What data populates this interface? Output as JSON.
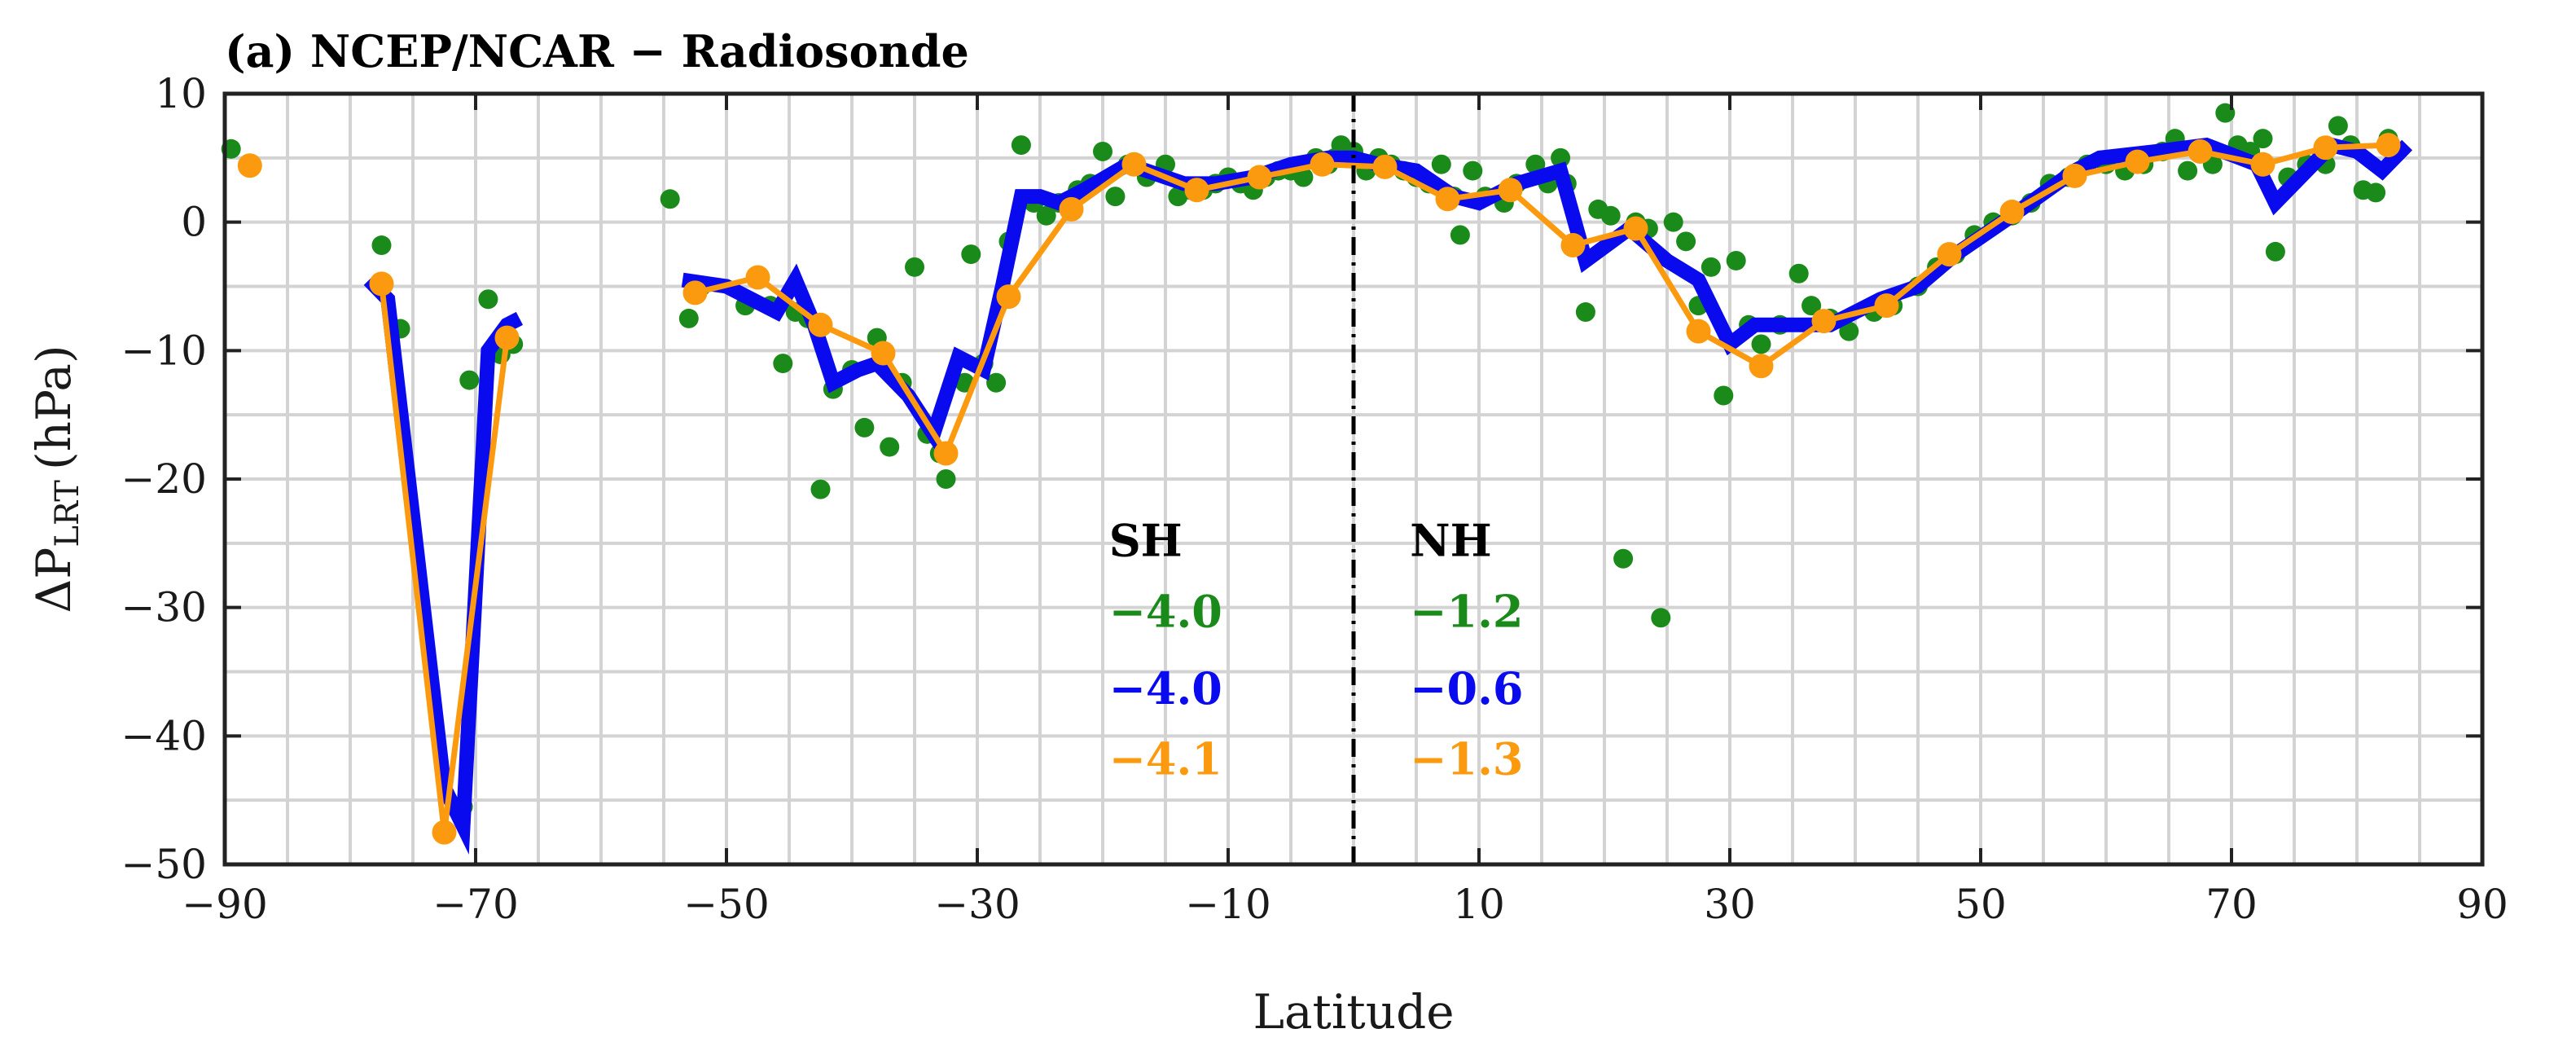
{
  "chart_data": {
    "type": "line",
    "title": "(a) NCEP/NCAR − Radiosonde",
    "xlabel": "Latitude",
    "ylabel_main": "ΔP",
    "ylabel_sub": "LRT",
    "ylabel_unit": "(hPa)",
    "xlim": [
      -90,
      90
    ],
    "ylim": [
      -50,
      10
    ],
    "xticks": [
      -90,
      -70,
      -50,
      -30,
      -10,
      10,
      30,
      50,
      70,
      90
    ],
    "xtick_labels": [
      "−90",
      "−70",
      "−50",
      "−30",
      "−10",
      "10",
      "30",
      "50",
      "70",
      "90"
    ],
    "yticks": [
      10,
      0,
      -10,
      -20,
      -30,
      -40,
      -50
    ],
    "ytick_labels": [
      "10",
      "0",
      "−10",
      "−20",
      "−30",
      "−40",
      "−50"
    ],
    "vgrid": [
      -90,
      -85,
      -80,
      -75,
      -70,
      -65,
      -60,
      -55,
      -50,
      -45,
      -40,
      -35,
      -30,
      -25,
      -20,
      -15,
      -10,
      -5,
      0,
      5,
      10,
      15,
      20,
      25,
      30,
      35,
      40,
      45,
      50,
      55,
      60,
      65,
      70,
      75,
      80,
      85,
      90
    ],
    "hgrid": [
      10,
      5,
      0,
      -5,
      -10,
      -15,
      -20,
      -25,
      -30,
      -35,
      -40,
      -45,
      -50
    ],
    "equator": 0,
    "series": [
      {
        "name": "scatter",
        "style": "scatter",
        "color": "#1a8a1a",
        "points": [
          [
            -89.5,
            5.7
          ],
          [
            -77.5,
            -1.8
          ],
          [
            -76,
            -8.3
          ],
          [
            -71,
            -45.5
          ],
          [
            -70.5,
            -12.3
          ],
          [
            -69,
            -6
          ],
          [
            -68,
            -10.3
          ],
          [
            -67,
            -9.5
          ],
          [
            -54.5,
            1.8
          ],
          [
            -53,
            -7.5
          ],
          [
            -52,
            -5
          ],
          [
            -48.5,
            -6.5
          ],
          [
            -46.5,
            -6.5
          ],
          [
            -45.5,
            -11
          ],
          [
            -44.5,
            -7
          ],
          [
            -43.5,
            -7.5
          ],
          [
            -42.5,
            -20.8
          ],
          [
            -41.5,
            -13
          ],
          [
            -40,
            -11.5
          ],
          [
            -39,
            -16
          ],
          [
            -38,
            -9
          ],
          [
            -37,
            -17.5
          ],
          [
            -36,
            -12.5
          ],
          [
            -35,
            -3.5
          ],
          [
            -34,
            -16.5
          ],
          [
            -33,
            -18
          ],
          [
            -32.5,
            -20
          ],
          [
            -31,
            -12.5
          ],
          [
            -30.5,
            -2.5
          ],
          [
            -29.5,
            -11
          ],
          [
            -28.5,
            -12.5
          ],
          [
            -27.5,
            -1.5
          ],
          [
            -26.5,
            6
          ],
          [
            -25.5,
            1.5
          ],
          [
            -24.5,
            0.5
          ],
          [
            -23.5,
            1.5
          ],
          [
            -22,
            2.5
          ],
          [
            -21,
            3
          ],
          [
            -20,
            5.5
          ],
          [
            -19,
            2
          ],
          [
            -18,
            4.5
          ],
          [
            -16.5,
            3.5
          ],
          [
            -15,
            4.5
          ],
          [
            -14,
            2
          ],
          [
            -13,
            2.5
          ],
          [
            -12,
            2.5
          ],
          [
            -11,
            3
          ],
          [
            -10,
            3.5
          ],
          [
            -9,
            3
          ],
          [
            -8,
            2.5
          ],
          [
            -7,
            3.5
          ],
          [
            -6,
            4
          ],
          [
            -5,
            4
          ],
          [
            -4,
            3.5
          ],
          [
            -3,
            5
          ],
          [
            -2,
            4.5
          ],
          [
            -1.5,
            5
          ],
          [
            -1,
            6
          ],
          [
            0,
            5.5
          ],
          [
            1,
            4
          ],
          [
            2,
            5
          ],
          [
            3,
            4.5
          ],
          [
            4,
            4
          ],
          [
            5,
            3.5
          ],
          [
            6,
            3
          ],
          [
            7,
            4.5
          ],
          [
            8,
            2
          ],
          [
            8.5,
            -1
          ],
          [
            9.5,
            4
          ],
          [
            10.5,
            2
          ],
          [
            12,
            1.5
          ],
          [
            13,
            3
          ],
          [
            14.5,
            4.5
          ],
          [
            15.5,
            3
          ],
          [
            16.5,
            5
          ],
          [
            17,
            3
          ],
          [
            18.5,
            -7
          ],
          [
            19.5,
            1
          ],
          [
            20.5,
            0.5
          ],
          [
            21.5,
            -26.2
          ],
          [
            22.5,
            0
          ],
          [
            23.5,
            -0.5
          ],
          [
            24.5,
            -30.8
          ],
          [
            25.5,
            0
          ],
          [
            26.5,
            -1.5
          ],
          [
            27.5,
            -6.5
          ],
          [
            28.5,
            -3.5
          ],
          [
            29.5,
            -13.5
          ],
          [
            30.5,
            -3
          ],
          [
            31.5,
            -8
          ],
          [
            32.5,
            -9.5
          ],
          [
            34,
            -8
          ],
          [
            35.5,
            -4
          ],
          [
            36.5,
            -6.5
          ],
          [
            38,
            -7.5
          ],
          [
            39.5,
            -8.5
          ],
          [
            41.5,
            -7
          ],
          [
            43,
            -6.5
          ],
          [
            45,
            -5
          ],
          [
            46.5,
            -3.5
          ],
          [
            48,
            -2.5
          ],
          [
            49.5,
            -1
          ],
          [
            51,
            0
          ],
          [
            52.5,
            0.5
          ],
          [
            54,
            1.5
          ],
          [
            55.5,
            3
          ],
          [
            57,
            3.5
          ],
          [
            58.5,
            4.5
          ],
          [
            60,
            4.5
          ],
          [
            61.5,
            4
          ],
          [
            63,
            4.5
          ],
          [
            64.5,
            5.5
          ],
          [
            65.5,
            6.5
          ],
          [
            66.5,
            4
          ],
          [
            67.5,
            5.5
          ],
          [
            68.5,
            4.5
          ],
          [
            69.5,
            8.5
          ],
          [
            70.5,
            6
          ],
          [
            71.5,
            5.5
          ],
          [
            72.5,
            6.5
          ],
          [
            73.5,
            -2.3
          ],
          [
            74.5,
            3.5
          ],
          [
            76,
            4.5
          ],
          [
            77.5,
            4.5
          ],
          [
            78.5,
            7.5
          ],
          [
            79.5,
            6
          ],
          [
            80.5,
            2.5
          ],
          [
            81.5,
            2.3
          ],
          [
            82.5,
            6.5
          ]
        ]
      },
      {
        "name": "blue-line",
        "style": "line",
        "color": "#0a0aee",
        "segments": [
          [
            [
              -78.5,
              -4.5
            ],
            [
              -77,
              -6
            ],
            [
              -72.5,
              -44
            ],
            [
              -71,
              -47
            ],
            [
              -69,
              -10
            ],
            [
              -67.5,
              -8
            ],
            [
              -66.5,
              -7.5
            ]
          ],
          [
            [
              -53.5,
              -4.5
            ],
            [
              -50,
              -5
            ],
            [
              -46,
              -7
            ],
            [
              -44.5,
              -4.5
            ],
            [
              -43,
              -8
            ],
            [
              -41.5,
              -12.5
            ],
            [
              -39.5,
              -11.5
            ],
            [
              -38,
              -11
            ],
            [
              -35.5,
              -13.5
            ],
            [
              -33.5,
              -16.5
            ],
            [
              -31.5,
              -10.5
            ],
            [
              -29.5,
              -11.5
            ],
            [
              -28,
              -5
            ],
            [
              -26.5,
              2
            ],
            [
              -25,
              2
            ],
            [
              -23.5,
              1.5
            ],
            [
              -21.5,
              2.5
            ],
            [
              -18,
              4.5
            ],
            [
              -16.5,
              4
            ],
            [
              -13.5,
              3
            ],
            [
              -11,
              3
            ],
            [
              -8,
              3.5
            ],
            [
              -5,
              4.5
            ],
            [
              -2,
              5
            ],
            [
              0,
              5
            ],
            [
              2,
              4.5
            ],
            [
              5,
              4
            ],
            [
              8,
              2
            ],
            [
              10,
              1.5
            ],
            [
              13,
              3
            ],
            [
              16.5,
              4
            ],
            [
              18.5,
              -3
            ],
            [
              22,
              -0.5
            ],
            [
              25,
              -3
            ],
            [
              27.5,
              -4.5
            ],
            [
              30,
              -9.5
            ],
            [
              32,
              -8
            ],
            [
              35,
              -8
            ],
            [
              38,
              -8
            ],
            [
              42,
              -6
            ],
            [
              45,
              -5
            ],
            [
              48,
              -2.5
            ],
            [
              52.5,
              0.5
            ],
            [
              57.5,
              4
            ],
            [
              59.5,
              5
            ],
            [
              64,
              5.5
            ],
            [
              68,
              6
            ],
            [
              72,
              4.5
            ],
            [
              73.5,
              1.5
            ],
            [
              76,
              4
            ],
            [
              78,
              6
            ],
            [
              80,
              5.5
            ],
            [
              82,
              4
            ],
            [
              84,
              6
            ]
          ]
        ]
      },
      {
        "name": "orange-line",
        "style": "line-markers",
        "color": "#fb9a0f",
        "segments": [
          [
            [
              -88,
              4.4
            ]
          ],
          [
            [
              -77.5,
              -4.8
            ],
            [
              -72.5,
              -47.5
            ],
            [
              -67.5,
              -9
            ]
          ],
          [
            [
              -52.5,
              -5.5
            ],
            [
              -47.5,
              -4.3
            ],
            [
              -42.5,
              -8
            ],
            [
              -37.5,
              -10.2
            ],
            [
              -32.5,
              -18
            ],
            [
              -27.5,
              -5.8
            ],
            [
              -22.5,
              1
            ],
            [
              -17.5,
              4.5
            ],
            [
              -12.5,
              2.5
            ],
            [
              -7.5,
              3.5
            ],
            [
              -2.5,
              4.5
            ],
            [
              2.5,
              4.3
            ],
            [
              7.5,
              1.8
            ],
            [
              12.5,
              2.5
            ],
            [
              17.5,
              -1.8
            ],
            [
              22.5,
              -0.5
            ],
            [
              27.5,
              -8.5
            ],
            [
              32.5,
              -11.2
            ],
            [
              37.5,
              -7.7
            ],
            [
              42.5,
              -6.5
            ],
            [
              47.5,
              -2.5
            ],
            [
              52.5,
              0.8
            ],
            [
              57.5,
              3.6
            ],
            [
              62.5,
              4.7
            ],
            [
              67.5,
              5.5
            ],
            [
              72.5,
              4.5
            ],
            [
              77.5,
              5.8
            ],
            [
              82.5,
              6
            ]
          ]
        ]
      }
    ],
    "annotations": [
      {
        "text": "SH",
        "x": -19.5,
        "y": -26,
        "color": "#000000"
      },
      {
        "text": "−4.0",
        "x": -19.5,
        "y": -31.5,
        "color": "#1a8a1a"
      },
      {
        "text": "−4.0",
        "x": -19.5,
        "y": -37.5,
        "color": "#0a0aee"
      },
      {
        "text": "−4.1",
        "x": -19.5,
        "y": -43,
        "color": "#fb9a0f"
      },
      {
        "text": "NH",
        "x": 4.5,
        "y": -26,
        "color": "#000000"
      },
      {
        "text": "−1.2",
        "x": 4.5,
        "y": -31.5,
        "color": "#1a8a1a"
      },
      {
        "text": "−0.6",
        "x": 4.5,
        "y": -37.5,
        "color": "#0a0aee"
      },
      {
        "text": "−1.3",
        "x": 4.5,
        "y": -43,
        "color": "#fb9a0f"
      }
    ]
  }
}
